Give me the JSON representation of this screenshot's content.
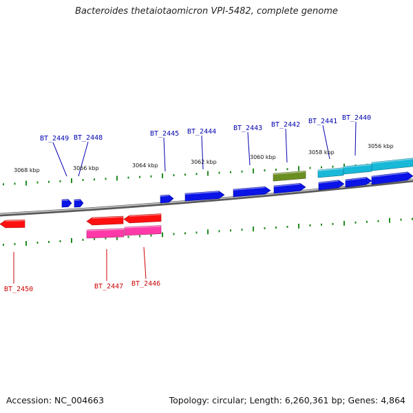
{
  "title": "Bacteroides thetaiotaomicron VPI-5482, complete genome",
  "footer": {
    "accession": "Accession: NC_004663",
    "stats": "Topology: circular; Length: 6,260,361 bp; Genes: 4,864"
  },
  "colors": {
    "backbone": "#8a8a8a",
    "tick": "#1f8a1f",
    "forward_gene": "#0a14e6",
    "reverse_gene": "#ff1010",
    "rna_gene": "#ff3aa8",
    "misc_gene": "#6b8e23",
    "cyan_gene": "#18b8d8",
    "forward_label": "#0000b0",
    "reverse_label": "#cc0000"
  },
  "scale_labels": [
    "3068 kbp",
    "3066 kbp",
    "3064 kbp",
    "3062 kbp",
    "3060 kbp",
    "3058 kbp",
    "3056 kbp"
  ],
  "gene_labels": {
    "forward": [
      "BT_2449",
      "BT_2448",
      "BT_2445",
      "BT_2444",
      "BT_2443",
      "BT_2442",
      "BT_2441",
      "BT_2440"
    ],
    "reverse": [
      "BT_2450",
      "BT_2447",
      "BT_2446"
    ]
  }
}
